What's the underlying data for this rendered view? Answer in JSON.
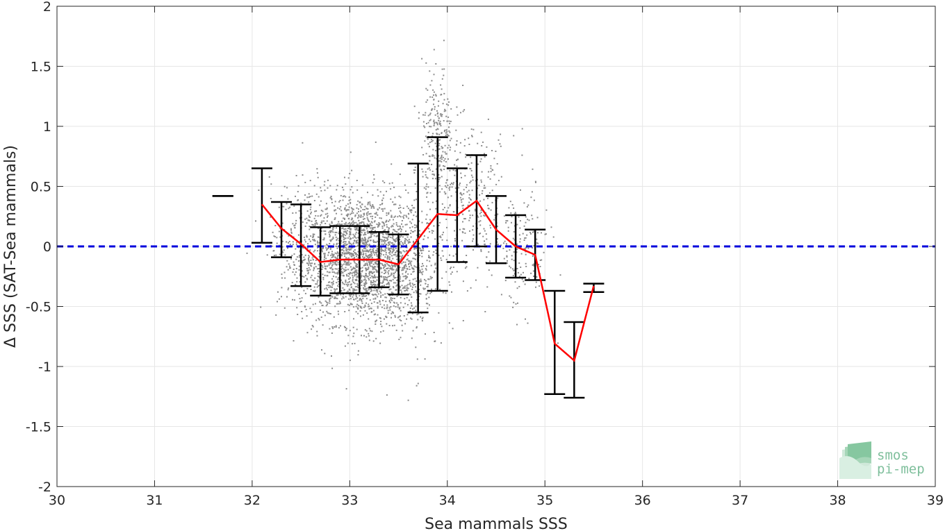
{
  "chart_data": {
    "type": "scatter",
    "xlabel": "Sea mammals SSS",
    "ylabel": "Δ SSS (SAT-Sea mammals)",
    "xlim": [
      30,
      39
    ],
    "ylim": [
      -2,
      2
    ],
    "x_ticks": [
      30,
      31,
      32,
      33,
      34,
      35,
      36,
      37,
      38,
      39
    ],
    "y_ticks": [
      2,
      1.5,
      1,
      0.5,
      0,
      -0.5,
      -1,
      -1.5,
      -2
    ],
    "y_tick_labels": [
      "2",
      "1.5",
      "1",
      "0.5",
      "0",
      "-0.5",
      "-1",
      "-1.5",
      "-2"
    ],
    "grid": true,
    "reference_line": {
      "y": 0,
      "color": "#0000dd",
      "style": "dashed"
    },
    "scatter_color": "#8c8c8c",
    "mean_line_color": "#ff0000",
    "errorbar_color": "#000000",
    "series": [
      {
        "kind": "errorbar_mean",
        "points": [
          {
            "x": 31.7,
            "mean": 0.42,
            "lower": 0.42,
            "upper": 0.42
          },
          {
            "x": 32.1,
            "mean": 0.35,
            "lower": 0.03,
            "upper": 0.65
          },
          {
            "x": 32.3,
            "mean": 0.15,
            "lower": -0.09,
            "upper": 0.37
          },
          {
            "x": 32.5,
            "mean": 0.02,
            "lower": -0.33,
            "upper": 0.35
          },
          {
            "x": 32.7,
            "mean": -0.13,
            "lower": -0.41,
            "upper": 0.16
          },
          {
            "x": 32.9,
            "mean": -0.11,
            "lower": -0.39,
            "upper": 0.17
          },
          {
            "x": 33.1,
            "mean": -0.11,
            "lower": -0.39,
            "upper": 0.17
          },
          {
            "x": 33.3,
            "mean": -0.11,
            "lower": -0.34,
            "upper": 0.12
          },
          {
            "x": 33.5,
            "mean": -0.15,
            "lower": -0.4,
            "upper": 0.1
          },
          {
            "x": 33.7,
            "mean": 0.06,
            "lower": -0.55,
            "upper": 0.69
          },
          {
            "x": 33.9,
            "mean": 0.27,
            "lower": -0.37,
            "upper": 0.91
          },
          {
            "x": 34.1,
            "mean": 0.26,
            "lower": -0.13,
            "upper": 0.65
          },
          {
            "x": 34.3,
            "mean": 0.38,
            "lower": 0.0,
            "upper": 0.76
          },
          {
            "x": 34.5,
            "mean": 0.14,
            "lower": -0.14,
            "upper": 0.42
          },
          {
            "x": 34.7,
            "mean": 0.0,
            "lower": -0.26,
            "upper": 0.26
          },
          {
            "x": 34.9,
            "mean": -0.07,
            "lower": -0.28,
            "upper": 0.14
          },
          {
            "x": 35.1,
            "mean": -0.81,
            "lower": -1.23,
            "upper": -0.37
          },
          {
            "x": 35.3,
            "mean": -0.95,
            "lower": -1.26,
            "upper": -0.63
          },
          {
            "x": 35.5,
            "mean": -0.33,
            "lower": -0.38,
            "upper": -0.31
          }
        ]
      }
    ],
    "scatter_clusters": [
      {
        "x_mean": 33.15,
        "x_sd": 0.32,
        "y_mean": -0.1,
        "y_sd": 0.27,
        "n": 2300
      },
      {
        "x_mean": 32.55,
        "x_sd": 0.18,
        "y_mean": 0.05,
        "y_sd": 0.25,
        "n": 250
      },
      {
        "x_mean": 33.9,
        "x_sd": 0.08,
        "y_mean": 0.9,
        "y_sd": 0.3,
        "n": 260
      },
      {
        "x_mean": 34.25,
        "x_sd": 0.22,
        "y_mean": 0.35,
        "y_sd": 0.3,
        "n": 320
      },
      {
        "x_mean": 34.75,
        "x_sd": 0.15,
        "y_mean": -0.05,
        "y_sd": 0.25,
        "n": 150
      },
      {
        "x_mean": 33.65,
        "x_sd": 0.12,
        "y_mean": -0.3,
        "y_sd": 0.35,
        "n": 160
      }
    ]
  },
  "logo": {
    "line1": "smos",
    "line2": "pi-mep"
  }
}
